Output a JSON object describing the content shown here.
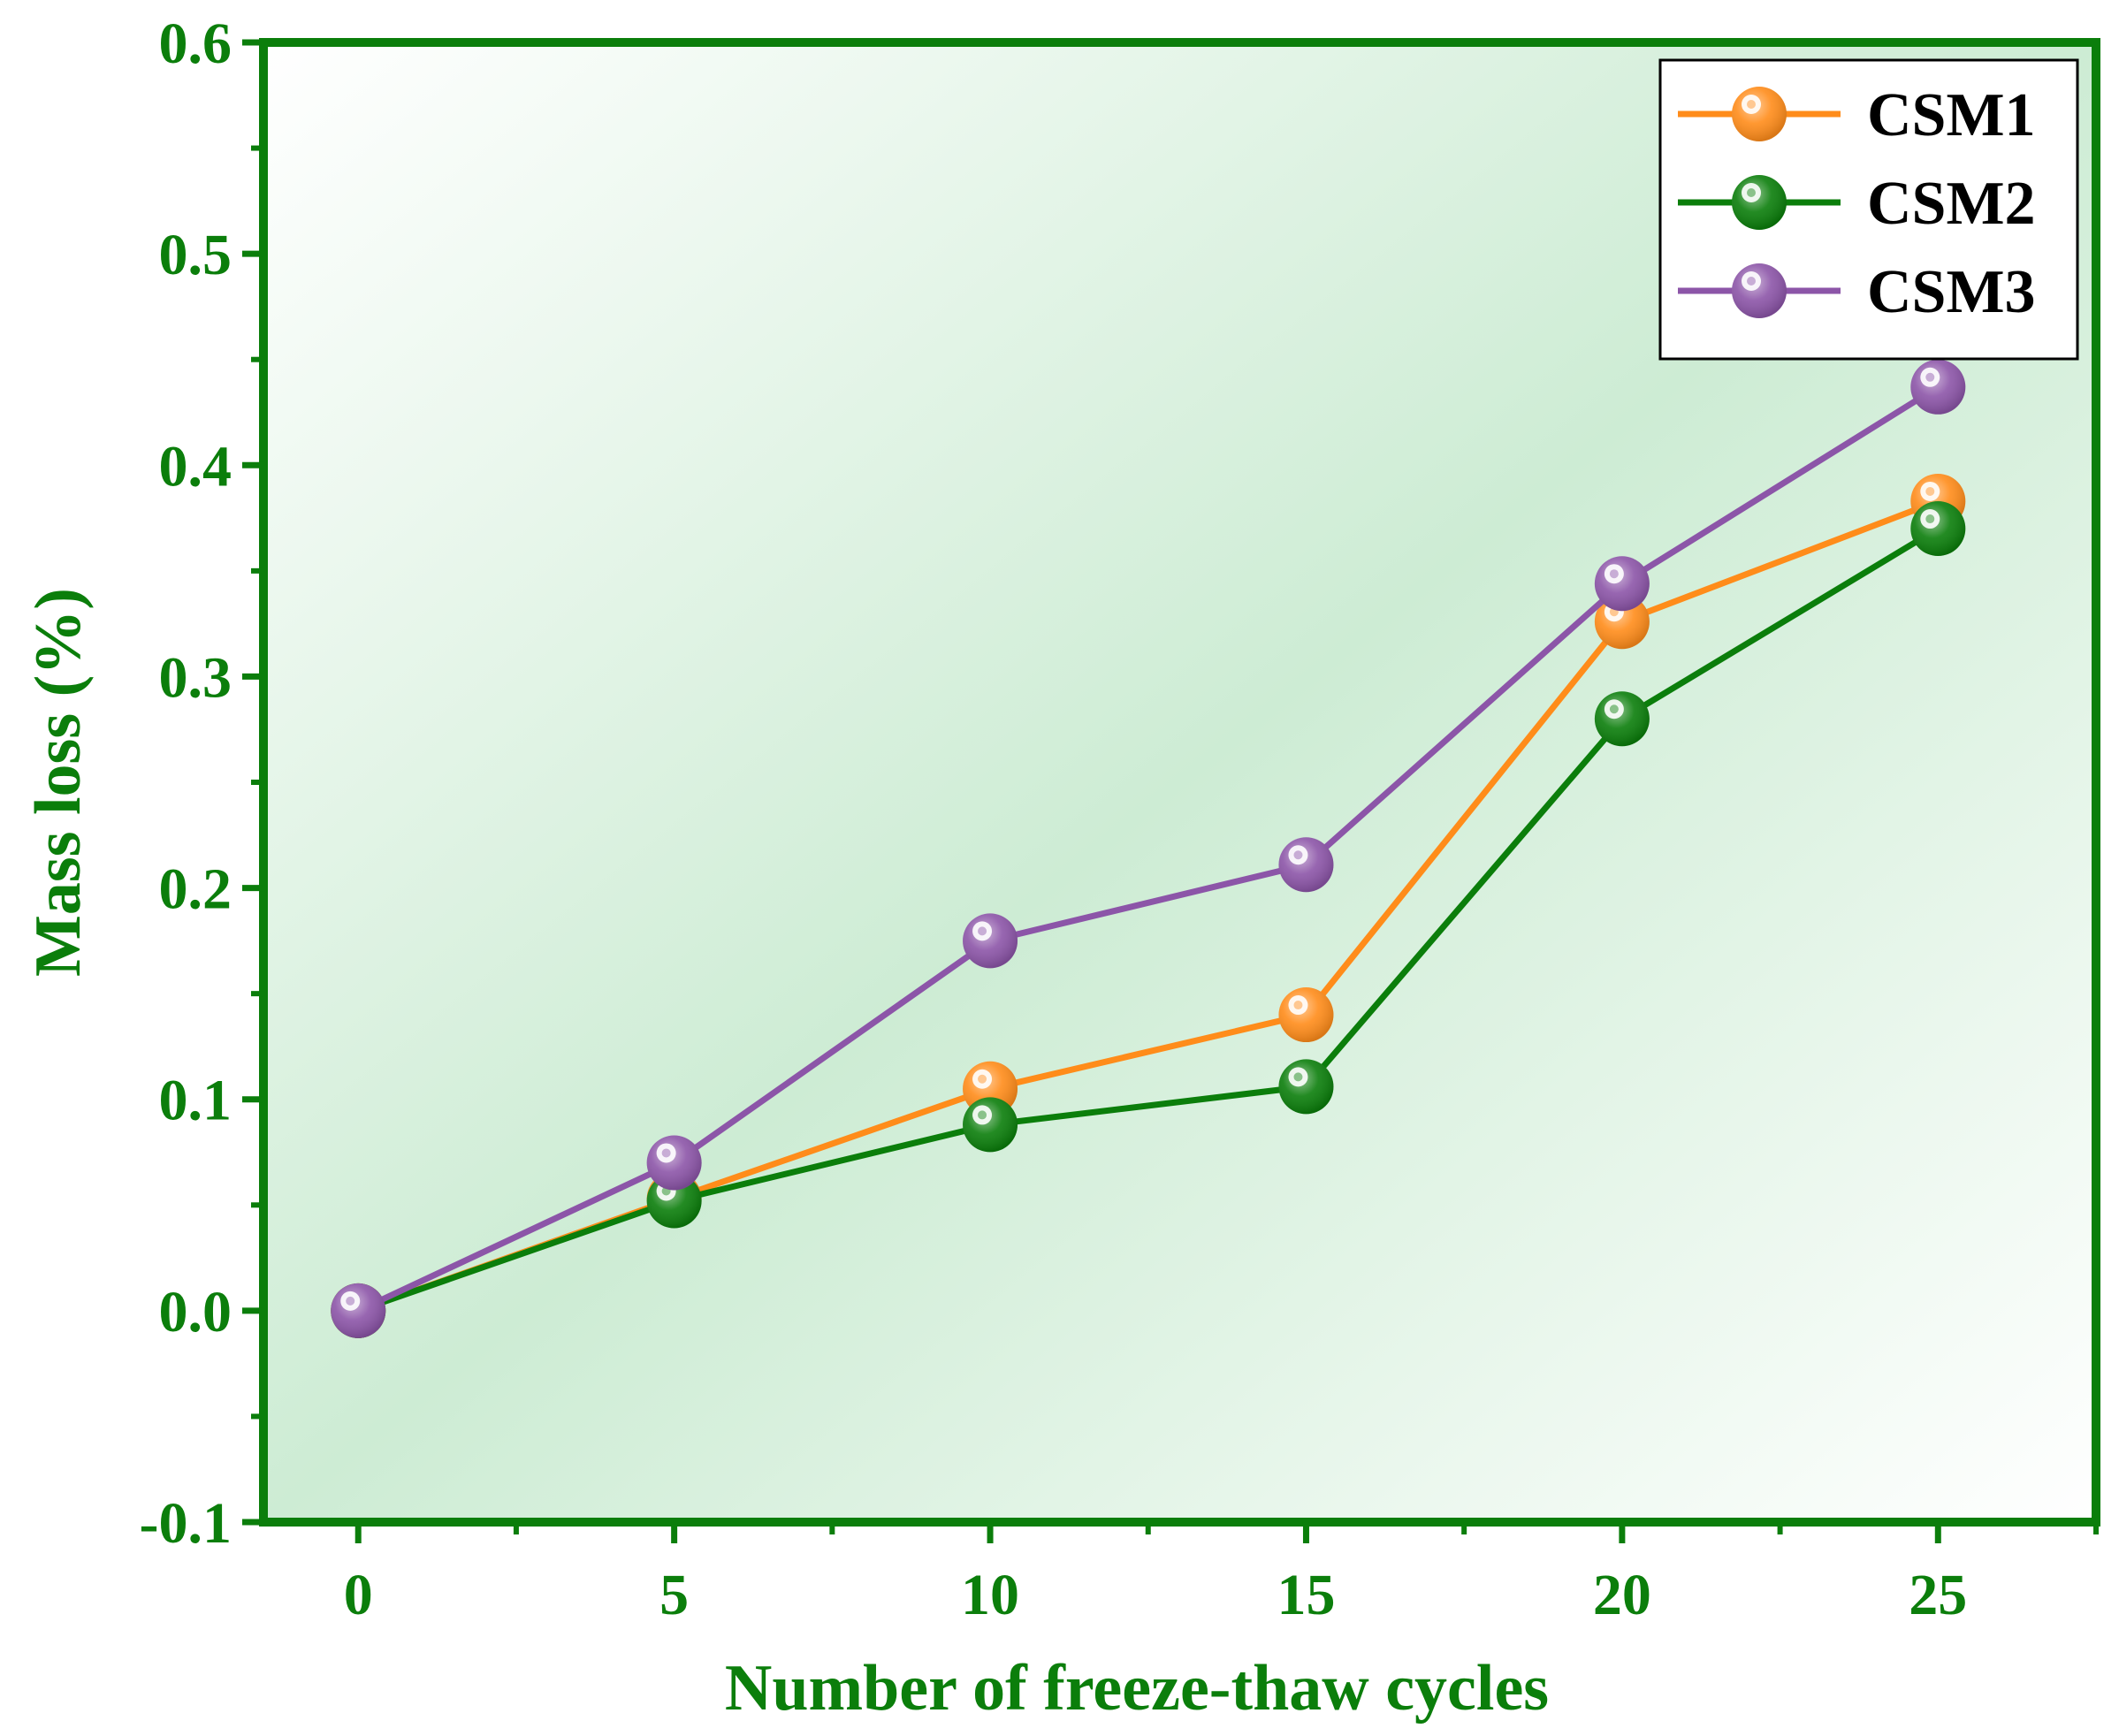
{
  "chart_data": {
    "type": "line",
    "title": "",
    "xlabel": "Number of freeze-thaw cycles",
    "ylabel": "Mass loss (%)",
    "x": [
      0,
      5,
      10,
      15,
      20,
      25
    ],
    "xlim": [
      -1.5,
      27.5
    ],
    "ylim": [
      -0.1,
      0.6
    ],
    "xticks": [
      0,
      5,
      10,
      15,
      20,
      25
    ],
    "xtick_labels": [
      "0",
      "5",
      "10",
      "15",
      "20",
      "25"
    ],
    "yticks": [
      -0.1,
      0.0,
      0.1,
      0.2,
      0.3,
      0.4,
      0.5,
      0.6
    ],
    "ytick_labels": [
      "-0.1",
      "0.0",
      "0.1",
      "0.2",
      "0.3",
      "0.4",
      "0.5",
      "0.6"
    ],
    "grid": false,
    "legend_position": "top-right",
    "series": [
      {
        "name": "CSM1",
        "color": "#FF8C1A",
        "values": [
          0.0,
          0.053,
          0.105,
          0.14,
          0.326,
          0.383
        ]
      },
      {
        "name": "CSM2",
        "color": "#0B7E0B",
        "values": [
          0.0,
          0.052,
          0.088,
          0.106,
          0.28,
          0.37
        ]
      },
      {
        "name": "CSM3",
        "color": "#8C55A8",
        "values": [
          0.0,
          0.07,
          0.175,
          0.211,
          0.344,
          0.437
        ]
      }
    ]
  },
  "colors": {
    "axis": "#0B7E0B",
    "text": "#0B7E0B",
    "background_light": "#FFFFFF",
    "background_tint": "#CBEBD2"
  }
}
